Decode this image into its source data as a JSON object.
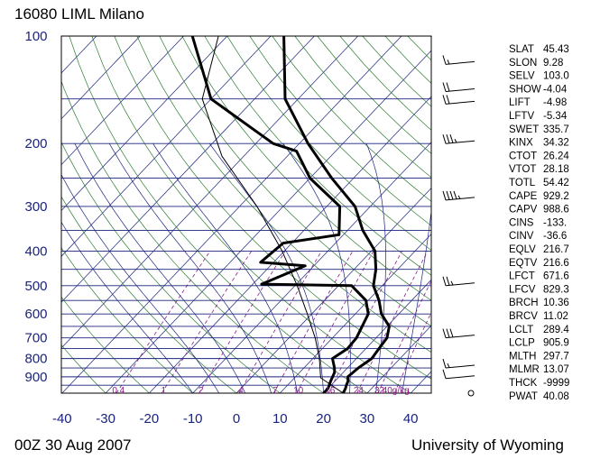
{
  "header": {
    "station_title": "16080 LIML Milano",
    "time_label": "00Z 30 Aug 2007",
    "credit": "University of Wyoming"
  },
  "colors": {
    "isobar": "#1a237e",
    "isotherm": "#1a237e",
    "dry_adiabat": "#2e7d32",
    "moist_adiabat": "#1a237e",
    "mixing_ratio": "#8b1a8b",
    "profile": "#000000",
    "axis_labels": "#1a237e"
  },
  "chart_data": {
    "type": "skewt",
    "title": "16080 LIML Milano",
    "pressure_axis": {
      "ticks": [
        100,
        200,
        300,
        400,
        500,
        600,
        700,
        800,
        900
      ],
      "range": [
        100,
        1000
      ]
    },
    "temperature_axis": {
      "ticks": [
        -40,
        -30,
        -20,
        -10,
        0,
        10,
        20,
        30,
        40
      ],
      "range": [
        -40,
        40
      ]
    },
    "mixing_ratio_labels": [
      "0.4",
      "1",
      "2",
      "4",
      "7",
      "10",
      "16",
      "24",
      "32",
      "40g/kg"
    ],
    "temperature_profile": [
      {
        "p": 1000,
        "t": 24.5
      },
      {
        "p": 970,
        "t": 24.0
      },
      {
        "p": 950,
        "t": 23.5
      },
      {
        "p": 925,
        "t": 23.0
      },
      {
        "p": 900,
        "t": 22.0
      },
      {
        "p": 850,
        "t": 22.5
      },
      {
        "p": 800,
        "t": 23.5
      },
      {
        "p": 750,
        "t": 23.0
      },
      {
        "p": 700,
        "t": 22.5
      },
      {
        "p": 650,
        "t": 20.5
      },
      {
        "p": 600,
        "t": 16.0
      },
      {
        "p": 550,
        "t": 12.5
      },
      {
        "p": 500,
        "t": 8.0
      },
      {
        "p": 450,
        "t": 5.0
      },
      {
        "p": 400,
        "t": 0.8
      },
      {
        "p": 350,
        "t": -6.5
      },
      {
        "p": 300,
        "t": -13.5
      },
      {
        "p": 250,
        "t": -25.0
      },
      {
        "p": 200,
        "t": -38.0
      },
      {
        "p": 150,
        "t": -53.0
      },
      {
        "p": 100,
        "t": -67.0
      }
    ],
    "dewpoint_profile": [
      {
        "p": 1000,
        "t": 20.0
      },
      {
        "p": 970,
        "t": 20.0
      },
      {
        "p": 925,
        "t": 19.0
      },
      {
        "p": 875,
        "t": 18.0
      },
      {
        "p": 850,
        "t": 17.0
      },
      {
        "p": 800,
        "t": 14.5
      },
      {
        "p": 750,
        "t": 15.8
      },
      {
        "p": 700,
        "t": 15.5
      },
      {
        "p": 600,
        "t": 13.0
      },
      {
        "p": 550,
        "t": 9.5
      },
      {
        "p": 500,
        "t": 3.0
      },
      {
        "p": 495,
        "t": -18.0
      },
      {
        "p": 440,
        "t": -12.0
      },
      {
        "p": 430,
        "t": -23.0
      },
      {
        "p": 380,
        "t": -22.0
      },
      {
        "p": 360,
        "t": -11.0
      },
      {
        "p": 300,
        "t": -17.0
      },
      {
        "p": 250,
        "t": -30.0
      },
      {
        "p": 210,
        "t": -39.0
      },
      {
        "p": 200,
        "t": -46.0
      },
      {
        "p": 150,
        "t": -70.0
      },
      {
        "p": 100,
        "t": -88.0
      }
    ],
    "parcel_path": [
      {
        "p": 1000,
        "t": 24.5
      },
      {
        "p": 906,
        "t": 16.0
      },
      {
        "p": 800,
        "t": 11.5
      },
      {
        "p": 700,
        "t": 6.0
      },
      {
        "p": 600,
        "t": -1.0
      },
      {
        "p": 500,
        "t": -9.5
      },
      {
        "p": 400,
        "t": -20.5
      },
      {
        "p": 300,
        "t": -36.0
      },
      {
        "p": 217,
        "t": -55.0
      },
      {
        "p": 150,
        "t": -72.0
      },
      {
        "p": 100,
        "t": -82.0
      }
    ],
    "wind_barbs": [
      {
        "p": 120,
        "knots": 15
      },
      {
        "p": 143,
        "knots": 20
      },
      {
        "p": 155,
        "knots": 20
      },
      {
        "p": 200,
        "knots": 35
      },
      {
        "p": 288,
        "knots": 45
      },
      {
        "p": 500,
        "knots": 25
      },
      {
        "p": 700,
        "knots": 30
      },
      {
        "p": 850,
        "knots": 15
      },
      {
        "p": 910,
        "knots": 10
      },
      {
        "p": 1000,
        "knots": 0
      }
    ],
    "indices": [
      {
        "name": "SLAT",
        "value": "45.43"
      },
      {
        "name": "SLON",
        "value": "9.28"
      },
      {
        "name": "SELV",
        "value": "103.0"
      },
      {
        "name": "SHOW",
        "value": "-4.04"
      },
      {
        "name": "LIFT",
        "value": "-4.98"
      },
      {
        "name": "LFTV",
        "value": "-5.34"
      },
      {
        "name": "SWET",
        "value": "335.7"
      },
      {
        "name": "KINX",
        "value": "34.32"
      },
      {
        "name": "CTOT",
        "value": "26.24"
      },
      {
        "name": "VTOT",
        "value": "28.18"
      },
      {
        "name": "TOTL",
        "value": "54.42"
      },
      {
        "name": "CAPE",
        "value": "929.2"
      },
      {
        "name": "CAPV",
        "value": "988.6"
      },
      {
        "name": "CINS",
        "value": "-133."
      },
      {
        "name": "CINV",
        "value": "-36.6"
      },
      {
        "name": "EQLV",
        "value": "216.7"
      },
      {
        "name": "EQTV",
        "value": "216.6"
      },
      {
        "name": "LFCT",
        "value": "671.6"
      },
      {
        "name": "LFCV",
        "value": "829.3"
      },
      {
        "name": "BRCH",
        "value": "10.36"
      },
      {
        "name": "BRCV",
        "value": "11.02"
      },
      {
        "name": "LCLT",
        "value": "289.4"
      },
      {
        "name": "LCLP",
        "value": "905.9"
      },
      {
        "name": "MLTH",
        "value": "297.7"
      },
      {
        "name": "MLMR",
        "value": "13.07"
      },
      {
        "name": "THCK",
        "value": "-9999"
      },
      {
        "name": "PWAT",
        "value": "40.08"
      }
    ]
  }
}
